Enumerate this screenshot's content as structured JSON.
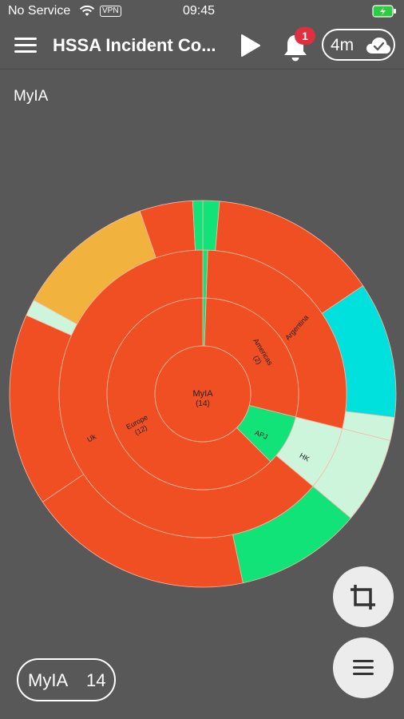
{
  "status_bar": {
    "carrier": "No Service",
    "vpn": "VPN",
    "time": "09:45"
  },
  "app_bar": {
    "title": "HSSA Incident Co...",
    "notification_count": "1",
    "refresh_interval": "4m"
  },
  "breadcrumb": "MyIA",
  "sunburst": {
    "center_label": "MyIA",
    "center_count": "(14)",
    "labels": {
      "americas": "Americas",
      "americas_count": "(2)",
      "argentina": "Argentina",
      "europe": "Europe",
      "europe_count": "(12)",
      "uk": "Uk",
      "apj": "APJ",
      "hk": "HK"
    },
    "colors": {
      "critical": "#f04f23",
      "major": "#f1b23e",
      "warning": "#00e0dc",
      "normal": "#11e379",
      "unknown": "#cdf5dc",
      "background": "#585858"
    }
  },
  "root_pill": {
    "name": "MyIA",
    "count": "14"
  }
}
